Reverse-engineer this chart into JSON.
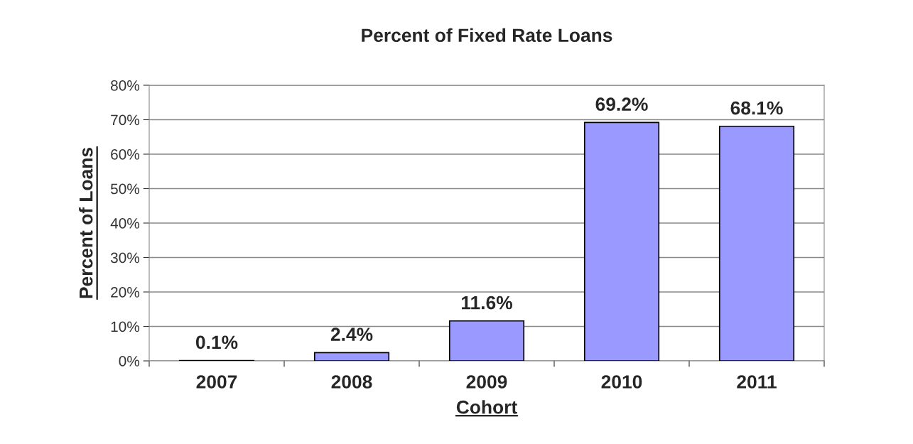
{
  "chart_data": {
    "type": "bar",
    "title": "Percent of Fixed Rate Loans",
    "xlabel": "Cohort",
    "ylabel": "Percent of Loans",
    "categories": [
      "2007",
      "2008",
      "2009",
      "2010",
      "2011"
    ],
    "values": [
      0.1,
      2.4,
      11.6,
      69.2,
      68.1
    ],
    "value_labels": [
      "0.1%",
      "2.4%",
      "11.6%",
      "69.2%",
      "68.1%"
    ],
    "color": "#9999ff",
    "ylim": [
      0,
      80
    ],
    "yticks": [
      {
        "value": 0,
        "label": "0%"
      },
      {
        "value": 10,
        "label": "10%"
      },
      {
        "value": 20,
        "label": "20%"
      },
      {
        "value": 30,
        "label": "30%"
      },
      {
        "value": 40,
        "label": "40%"
      },
      {
        "value": 50,
        "label": "50%"
      },
      {
        "value": 60,
        "label": "60%"
      },
      {
        "value": 70,
        "label": "70%"
      },
      {
        "value": 80,
        "label": "80%"
      }
    ],
    "grid": "y",
    "legend": false
  }
}
